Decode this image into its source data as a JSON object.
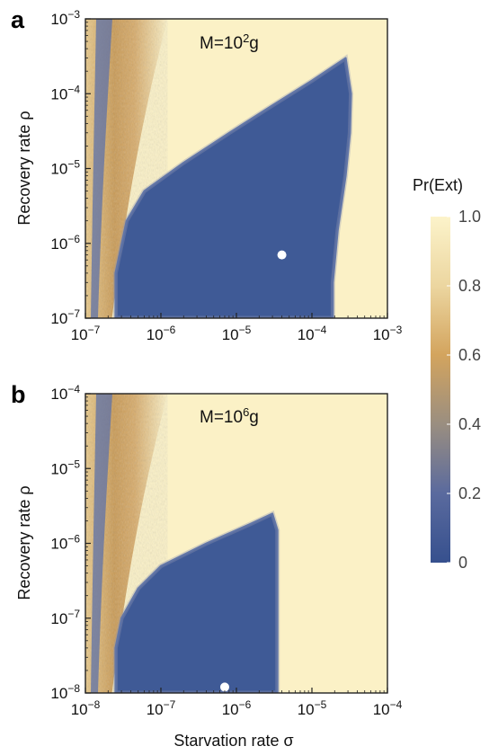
{
  "colors": {
    "high": "#fbf1c6",
    "mid_orange": "#d4a35d",
    "low": "#3f5a96",
    "dot": "#ffffff",
    "frame": "#000000"
  },
  "colorbar": {
    "title": "Pr(Ext)",
    "ticks": [
      "1.0",
      "0.8",
      "0.6",
      "0.4",
      "0.2",
      "0"
    ],
    "values": [
      1.0,
      0.8,
      0.6,
      0.4,
      0.2,
      0
    ]
  },
  "chart_data": [
    {
      "type": "heatmap",
      "panel": "a",
      "annotation_prefix": "M=10",
      "annotation_exp": "2",
      "annotation_suffix": "g",
      "xlabel": "",
      "ylabel": "Recovery rate ρ",
      "x_scale": "log",
      "y_scale": "log",
      "xlim": [
        1e-07,
        0.001
      ],
      "ylim": [
        1e-07,
        0.001
      ],
      "x_ticks": [
        {
          "base": "10",
          "exp": "−7"
        },
        {
          "base": "10",
          "exp": "−6"
        },
        {
          "base": "10",
          "exp": "−5"
        },
        {
          "base": "10",
          "exp": "−4"
        },
        {
          "base": "10",
          "exp": "−3"
        }
      ],
      "y_ticks": [
        {
          "base": "10",
          "exp": "−7"
        },
        {
          "base": "10",
          "exp": "−6"
        },
        {
          "base": "10",
          "exp": "−5"
        },
        {
          "base": "10",
          "exp": "−4"
        },
        {
          "base": "10",
          "exp": "−3"
        }
      ],
      "marker": {
        "x": 4e-05,
        "y": 7e-07
      },
      "low_extinction_region_boundary": [
        [
          2.5e-07,
          1e-07
        ],
        [
          2.5e-07,
          4e-07
        ],
        [
          3.5e-07,
          2e-06
        ],
        [
          6e-07,
          5e-06
        ],
        [
          2e-06,
          1.2e-05
        ],
        [
          8e-06,
          3e-05
        ],
        [
          3e-05,
          7e-05
        ],
        [
          0.0001,
          0.00015
        ],
        [
          0.00028,
          0.0003
        ],
        [
          0.00033,
          0.0001
        ],
        [
          0.00032,
          3e-05
        ],
        [
          0.00028,
          8e-06
        ],
        [
          0.00022,
          1.5e-06
        ],
        [
          0.00019,
          3e-07
        ],
        [
          0.00019,
          1e-07
        ]
      ]
    },
    {
      "type": "heatmap",
      "panel": "b",
      "annotation_prefix": "M=10",
      "annotation_exp": "6",
      "annotation_suffix": "g",
      "xlabel": "Starvation rate σ",
      "ylabel": "Recovery rate ρ",
      "x_scale": "log",
      "y_scale": "log",
      "xlim": [
        1e-08,
        0.0001
      ],
      "ylim": [
        1e-08,
        0.0001
      ],
      "x_ticks": [
        {
          "base": "10",
          "exp": "−8"
        },
        {
          "base": "10",
          "exp": "−7"
        },
        {
          "base": "10",
          "exp": "−6"
        },
        {
          "base": "10",
          "exp": "−5"
        },
        {
          "base": "10",
          "exp": "−4"
        }
      ],
      "y_ticks": [
        {
          "base": "10",
          "exp": "−8"
        },
        {
          "base": "10",
          "exp": "−7"
        },
        {
          "base": "10",
          "exp": "−6"
        },
        {
          "base": "10",
          "exp": "−5"
        },
        {
          "base": "10",
          "exp": "−4"
        }
      ],
      "marker": {
        "x": 7e-07,
        "y": 1.2e-08
      },
      "low_extinction_region_boundary": [
        [
          2.5e-08,
          1e-08
        ],
        [
          2.5e-08,
          4e-08
        ],
        [
          3e-08,
          1e-07
        ],
        [
          5e-08,
          2.5e-07
        ],
        [
          1e-07,
          5e-07
        ],
        [
          4e-07,
          1e-06
        ],
        [
          1.5e-06,
          1.8e-06
        ],
        [
          3e-06,
          2.5e-06
        ],
        [
          3.5e-06,
          1.5e-06
        ],
        [
          3.5e-06,
          5e-07
        ],
        [
          3.5e-06,
          1e-07
        ],
        [
          3.5e-06,
          1e-08
        ]
      ]
    }
  ]
}
